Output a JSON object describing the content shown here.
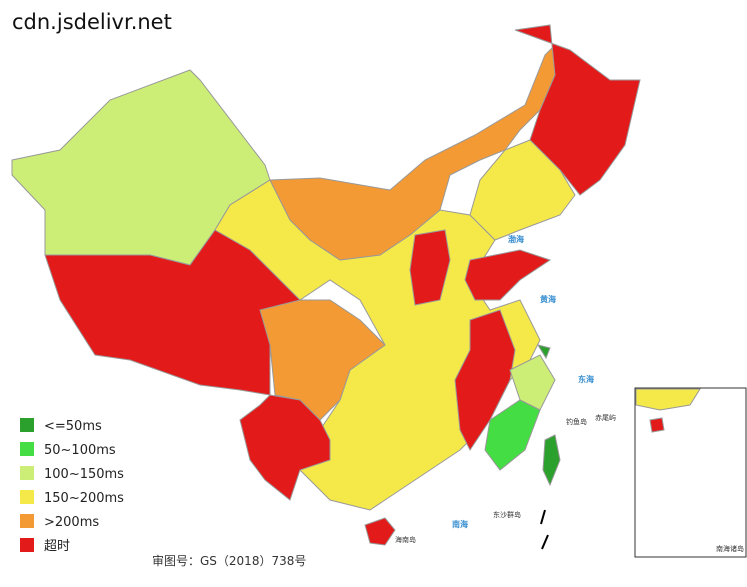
{
  "header": {
    "title": "cdn.jsdelivr.net"
  },
  "legend": [
    {
      "label": "<=50ms",
      "color": "#2ca02c"
    },
    {
      "label": "50~100ms",
      "color": "#44dd44"
    },
    {
      "label": "100~150ms",
      "color": "#ccee77"
    },
    {
      "label": "150~200ms",
      "color": "#f5e94a"
    },
    {
      "label": ">200ms",
      "color": "#f39a35"
    },
    {
      "label": "超时",
      "color": "#e31a1a"
    }
  ],
  "map_labels": {
    "bohai": "渤海",
    "huanghai": "黄海",
    "donghai": "东海",
    "nanhai": "南海",
    "diaoyu": "钓鱼岛",
    "chiwei": "赤尾屿",
    "hainan": "海南岛",
    "dongsha": "东沙群岛",
    "inset": "南海诸岛"
  },
  "footer": {
    "approval": "审图号：GS（2018）738号"
  }
}
